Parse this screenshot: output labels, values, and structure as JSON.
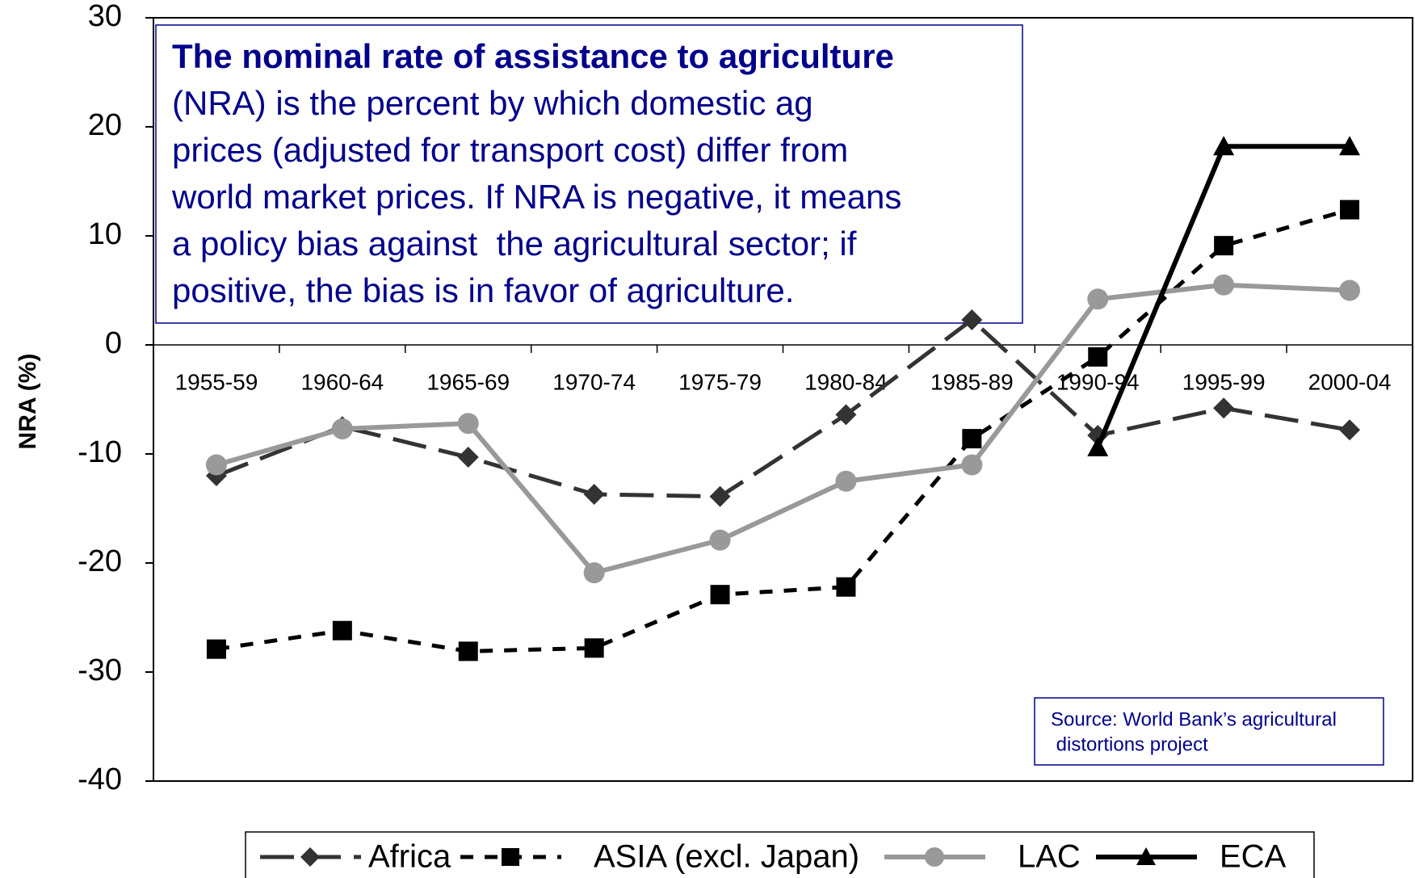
{
  "chart_data": {
    "type": "line",
    "y_label": "NRA (%)",
    "categories": [
      "1955-59",
      "1960-64",
      "1965-69",
      "1970-74",
      "1975-79",
      "1980-84",
      "1985-89",
      "1990-94",
      "1995-99",
      "2000-04"
    ],
    "series": [
      {
        "name": "Africa",
        "color": "#333333",
        "marker": "diamond",
        "dash": "long",
        "values": [
          -12,
          -7.5,
          -10.3,
          -13.7,
          -13.9,
          -6.4,
          2.3,
          -8.3,
          -5.8,
          -7.8
        ]
      },
      {
        "name": "ASIA (excl. Japan)",
        "color": "#000000",
        "marker": "square",
        "dash": "short",
        "values": [
          -27.9,
          -26.2,
          -28.1,
          -27.8,
          -22.9,
          -22.2,
          -8.6,
          -1.1,
          9.1,
          12.4
        ]
      },
      {
        "name": "LAC",
        "color": "#999999",
        "marker": "circle",
        "dash": "solid",
        "values": [
          -11,
          -7.7,
          -7.2,
          -20.9,
          -17.9,
          -12.5,
          -11,
          4.2,
          5.5,
          5
        ]
      },
      {
        "name": "ECA",
        "color": "#000000",
        "marker": "triangle",
        "dash": "solid",
        "values": [
          null,
          null,
          null,
          null,
          null,
          null,
          null,
          -9.4,
          18.2,
          18.2
        ]
      }
    ],
    "ylim": [
      -40,
      30
    ],
    "yticks": [
      -40,
      -30,
      -20,
      -10,
      0,
      10,
      20,
      30
    ],
    "annotation": {
      "title": "The nominal rate of assistance to agriculture",
      "lines": [
        "(NRA) is the percent by which domestic ag",
        "prices (adjusted for transport cost) differ from",
        "world market prices. If NRA is negative, it means",
        "a policy bias against  the agricultural sector; if",
        "positive, the bias is in favor of agriculture."
      ]
    },
    "source": [
      "Source: World Bank’s agricultural",
      " distortions project"
    ]
  }
}
